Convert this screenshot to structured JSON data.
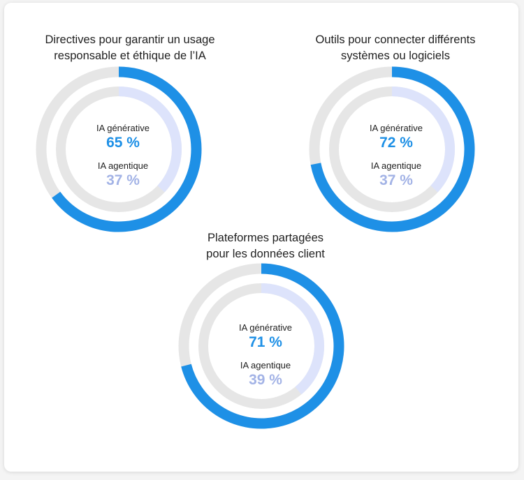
{
  "colors": {
    "generative": "#1e90e6",
    "agentic": "#dde3fb",
    "track": "#e6e6e6"
  },
  "chart_data": [
    {
      "type": "donut",
      "title": [
        "Directives pour garantir un usage",
        "responsable et éthique de l’IA"
      ],
      "series": [
        {
          "name": "IA générative",
          "value": 65,
          "label": "65 %"
        },
        {
          "name": "IA agentique",
          "value": 37,
          "label": "37 %"
        }
      ]
    },
    {
      "type": "donut",
      "title": [
        "Outils pour connecter différents",
        "systèmes ou logiciels"
      ],
      "series": [
        {
          "name": "IA générative",
          "value": 72,
          "label": "72 %"
        },
        {
          "name": "IA agentique",
          "value": 37,
          "label": "37 %"
        }
      ]
    },
    {
      "type": "donut",
      "title": [
        "Plateformes partagées",
        "pour les données client"
      ],
      "series": [
        {
          "name": "IA générative",
          "value": 71,
          "label": "71 %"
        },
        {
          "name": "IA agentique",
          "value": 39,
          "label": "39 %"
        }
      ]
    }
  ]
}
